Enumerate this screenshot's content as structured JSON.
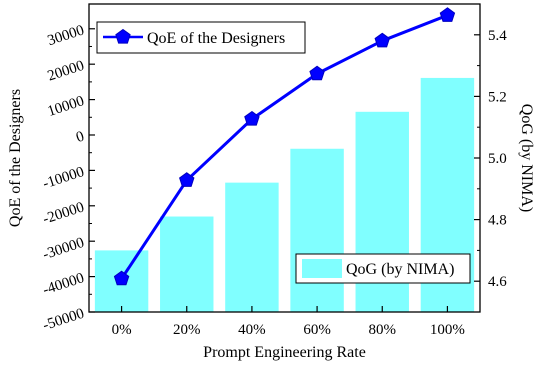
{
  "chart_data": {
    "type": "bar",
    "categories": [
      "0%",
      "20%",
      "40%",
      "60%",
      "80%",
      "100%"
    ],
    "xlabel": "Prompt Engineering Rate",
    "series": [
      {
        "name": "QoG (by NIMA)",
        "type": "bar",
        "axis": "right",
        "color": "#80FFFF",
        "values": [
          4.7,
          4.81,
          4.92,
          5.03,
          5.15,
          5.26
        ]
      },
      {
        "name": "QoE of the Designers",
        "type": "line",
        "axis": "left",
        "color": "#0000FF",
        "marker": "pentagon",
        "values": [
          -40600,
          -12800,
          4500,
          17300,
          26600,
          33800
        ]
      }
    ],
    "y_left": {
      "label": "QoE of the Designers",
      "ylim": [
        -50000,
        37000
      ],
      "ticks": [
        -50000,
        -40000,
        -30000,
        -20000,
        -10000,
        0,
        10000,
        20000,
        30000
      ],
      "tick_labels": [
        "-50000",
        "-40000",
        "-30000",
        "-20000",
        "-10000",
        "0",
        "10000",
        "20000",
        "30000"
      ]
    },
    "y_right": {
      "label": "QoG (by NIMA)",
      "ylim": [
        4.5,
        5.5
      ],
      "ticks": [
        4.6,
        4.8,
        5.0,
        5.2,
        5.4
      ],
      "tick_labels": [
        "4.6",
        "4.8",
        "5.0",
        "5.2",
        "5.4"
      ]
    },
    "legend": {
      "line": {
        "label": "QoE of the Designers",
        "placement": "top-left"
      },
      "bar": {
        "label": "QoG (by NIMA)",
        "placement": "bottom-right"
      }
    },
    "grid": false
  }
}
